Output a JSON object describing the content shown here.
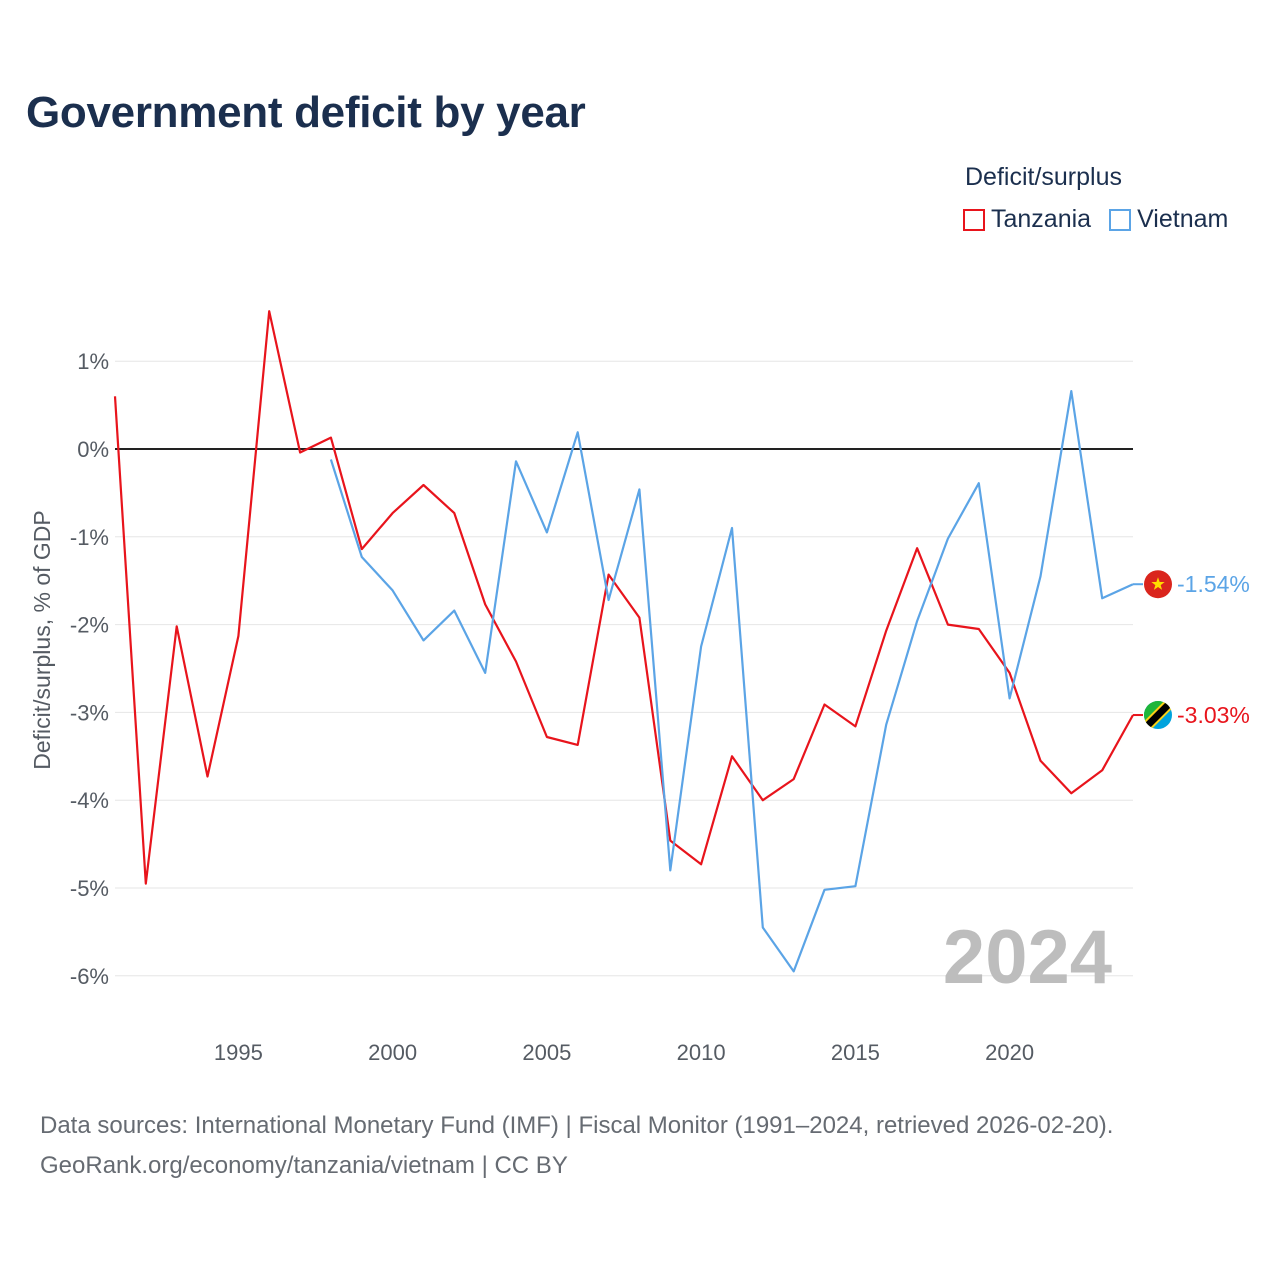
{
  "title": "Government deficit by year",
  "legend": {
    "title": "Deficit/surplus",
    "items": [
      {
        "name": "Tanzania",
        "color": "#e8141c"
      },
      {
        "name": "Vietnam",
        "color": "#5ba4e6"
      }
    ]
  },
  "footer": {
    "line1": "Data sources: International Monetary Fund (IMF) | Fiscal Monitor (1991–2024, retrieved 2026-02-20).",
    "line2": "GeoRank.org/economy/tanzania/vietnam | CC BY"
  },
  "chart_data": {
    "type": "line",
    "title": "Government deficit by year",
    "xlabel": "",
    "ylabel": "Deficit/surplus, % of GDP",
    "xlim": [
      1991,
      2024
    ],
    "ylim": [
      -6.2,
      1.6
    ],
    "x_ticks": [
      1995,
      2000,
      2005,
      2010,
      2015,
      2020
    ],
    "x_tick_labels": [
      "1995",
      "2000",
      "2005",
      "2010",
      "2015",
      "2020"
    ],
    "y_ticks": [
      1,
      0,
      -1,
      -2,
      -3,
      -4,
      -5,
      -6
    ],
    "y_tick_labels": [
      "1%",
      "0%",
      "-1%",
      "-2%",
      "-3%",
      "-4%",
      "-5%",
      "-6%"
    ],
    "grid": true,
    "legend_position": "top-right",
    "current_year_label": "2024",
    "series": [
      {
        "name": "Tanzania",
        "color": "#e8141c",
        "end_label": "-3.03%",
        "flag": "tanzania",
        "x": [
          1991,
          1992,
          1993,
          1994,
          1995,
          1996,
          1997,
          1998,
          1999,
          2000,
          2001,
          2002,
          2003,
          2004,
          2005,
          2006,
          2007,
          2008,
          2009,
          2010,
          2011,
          2012,
          2013,
          2014,
          2015,
          2016,
          2017,
          2018,
          2019,
          2020,
          2021,
          2022,
          2023,
          2024
        ],
        "values": [
          0.6,
          -4.95,
          -2.02,
          -3.73,
          -2.13,
          1.57,
          -0.04,
          0.13,
          -1.14,
          -0.73,
          -0.41,
          -0.73,
          -1.77,
          -2.42,
          -3.28,
          -3.37,
          -1.43,
          -1.92,
          -4.46,
          -4.73,
          -3.5,
          -4.0,
          -3.76,
          -2.91,
          -3.16,
          -2.07,
          -1.13,
          -2.0,
          -2.05,
          -2.55,
          -3.55,
          -3.92,
          -3.66,
          -3.03
        ]
      },
      {
        "name": "Vietnam",
        "color": "#5ba4e6",
        "end_label": "-1.54%",
        "flag": "vietnam",
        "x": [
          1998,
          1999,
          2000,
          2001,
          2002,
          2003,
          2004,
          2005,
          2006,
          2007,
          2008,
          2009,
          2010,
          2011,
          2012,
          2013,
          2014,
          2015,
          2016,
          2017,
          2018,
          2019,
          2020,
          2021,
          2022,
          2023,
          2024
        ],
        "values": [
          -0.12,
          -1.23,
          -1.61,
          -2.18,
          -1.84,
          -2.55,
          -0.14,
          -0.95,
          0.19,
          -1.72,
          -0.46,
          -4.8,
          -2.25,
          -0.9,
          -5.45,
          -5.95,
          -5.02,
          -4.98,
          -3.14,
          -1.96,
          -1.02,
          -0.39,
          -2.84,
          -1.45,
          0.66,
          -1.7,
          -1.54
        ]
      }
    ]
  }
}
